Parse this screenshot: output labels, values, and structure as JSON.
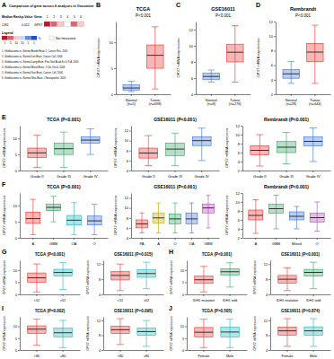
{
  "chart_data": [
    {
      "type": "heatmap",
      "label": "A",
      "title": "Comparison of gene across 6 analyses in Oncomine",
      "row_headers": [
        "Median Rank",
        "p-Value",
        "Gene"
      ],
      "columns": [
        1,
        2,
        3,
        4,
        5,
        6
      ],
      "gene": "GPX7",
      "median_rank": 1361,
      "p_value": 0.012,
      "cells": [
        1,
        5,
        10,
        null,
        5,
        10
      ],
      "legend_title": "Legend",
      "cbar_ticks": [
        {
          "value": 1,
          "label": "1"
        },
        {
          "value": 5,
          "label": "5"
        },
        {
          "value": 10,
          "label": "10"
        },
        {
          "value": -10,
          "label": "10"
        },
        {
          "value": -5,
          "label": "5"
        },
        {
          "value": -1,
          "label": "1"
        }
      ],
      "cbar_unit": "%",
      "not_measured": "Not measured",
      "analyses": [
        "1. Glioblastoma vs. Normal Bredel Brain 2, Cancer Res, 2005",
        "2. Glioblastoma vs. Normal Lee Brain, Cancer Cell, 2006",
        "3. Glioblastoma vs. Normal Liang Brain, Proc Natl Acad Sci U S A, 2005",
        "4. Glioblastoma vs. Normal Murat Brain, J Clin Oncol, 2008",
        "5. Glioblastoma vs. Normal Sun Brain, Cancer Cell, 2006",
        "6. Glioblastoma vs. Normal Shai Brain, J Neuropathol, 2003"
      ]
    },
    {
      "type": "box",
      "label": "B",
      "title": "TCGA",
      "subtitle": "P<0.001",
      "ylabel": "GPX7 mRNA expression",
      "categories": [
        "Normal\n(n=5)",
        "Tumor\n(n=698)"
      ],
      "colors": [
        "#3b6fd6",
        "#e8312f"
      ],
      "ylim": [
        0,
        14
      ],
      "yticks": [
        0,
        5,
        10
      ],
      "boxes": [
        {
          "min": 0.5,
          "q1": 0.8,
          "median": 1.2,
          "q3": 1.8,
          "max": 2.5
        },
        {
          "min": 1,
          "q1": 5,
          "median": 7.5,
          "q3": 9.5,
          "max": 13
        }
      ]
    },
    {
      "type": "box",
      "label": "C",
      "title": "GSE16011",
      "subtitle": "P<0.001",
      "ylabel": "GPX7 mRNA expression",
      "categories": [
        "Normal\n(n=8)",
        "Tumor\n(n=276)"
      ],
      "colors": [
        "#3b6fd6",
        "#e8312f"
      ],
      "ylim": [
        4,
        13
      ],
      "yticks": [
        4,
        6,
        8,
        10,
        12
      ],
      "boxes": [
        {
          "min": 5.5,
          "q1": 5.8,
          "median": 6.2,
          "q3": 6.6,
          "max": 7
        },
        {
          "min": 5.5,
          "q1": 8,
          "median": 9.2,
          "q3": 10.2,
          "max": 12.5
        }
      ]
    },
    {
      "type": "box",
      "label": "D",
      "title": "Rembrandt",
      "subtitle": "P<0.001",
      "ylabel": "GPX7 mRNA expression",
      "categories": [
        "Normal\n(n=28)",
        "Tumor\n(n=444)"
      ],
      "colors": [
        "#3b6fd6",
        "#e8312f"
      ],
      "ylim": [
        2,
        12
      ],
      "yticks": [
        2,
        4,
        6,
        8,
        10,
        12
      ],
      "boxes": [
        {
          "min": 3.5,
          "q1": 4.2,
          "median": 4.8,
          "q3": 5.4,
          "max": 6.5
        },
        {
          "min": 3.5,
          "q1": 6.5,
          "median": 7.8,
          "q3": 9,
          "max": 11.5
        }
      ]
    },
    {
      "type": "box",
      "label": "E",
      "title": "TCGA (P<0.001)",
      "ylabel": "GPX7 mRNA expression",
      "categories": [
        "Grade II",
        "Grade III",
        "Grade IV"
      ],
      "colors": [
        "#e8312f",
        "#2ca25f",
        "#3b6fd6"
      ],
      "ylim": [
        0,
        14
      ],
      "yticks": [
        0,
        5,
        10
      ],
      "boxes": [
        {
          "min": 1,
          "q1": 4,
          "median": 5.5,
          "q3": 7,
          "max": 11
        },
        {
          "min": 1,
          "q1": 5,
          "median": 6.8,
          "q3": 8.5,
          "max": 12
        },
        {
          "min": 5,
          "q1": 8.5,
          "median": 9.5,
          "q3": 10.5,
          "max": 13
        }
      ]
    },
    {
      "type": "box",
      "title": "GSE16011 (P<0.001)",
      "ylabel": "GPX7 mRNA expression",
      "categories": [
        "Grade II",
        "Grade III",
        "Grade IV"
      ],
      "colors": [
        "#e8312f",
        "#2ca25f",
        "#3b6fd6"
      ],
      "ylim": [
        4,
        13
      ],
      "yticks": [
        4,
        6,
        8,
        10,
        12
      ],
      "boxes": [
        {
          "min": 5,
          "q1": 6.5,
          "median": 7.5,
          "q3": 8.5,
          "max": 11
        },
        {
          "min": 5,
          "q1": 7,
          "median": 8.3,
          "q3": 9.5,
          "max": 11.5
        },
        {
          "min": 6,
          "q1": 9,
          "median": 10,
          "q3": 10.8,
          "max": 12.5
        }
      ]
    },
    {
      "type": "box",
      "title": "Rembrandt (P<0.001)",
      "ylabel": "GPX7 mRNA expression",
      "categories": [
        "Grade II",
        "Grade III",
        "Grade IV"
      ],
      "colors": [
        "#e8312f",
        "#2ca25f",
        "#3b6fd6"
      ],
      "ylim": [
        2,
        12
      ],
      "yticks": [
        2,
        4,
        6,
        8,
        10,
        12
      ],
      "boxes": [
        {
          "min": 3,
          "q1": 5.5,
          "median": 6.5,
          "q3": 7.5,
          "max": 10
        },
        {
          "min": 3.5,
          "q1": 6,
          "median": 7.2,
          "q3": 8.5,
          "max": 10.5
        },
        {
          "min": 4,
          "q1": 7.5,
          "median": 8.5,
          "q3": 9.5,
          "max": 11.5
        }
      ]
    },
    {
      "type": "box",
      "label": "F",
      "title": "TCGA (P<0.001)",
      "ylabel": "GPX7 mRNA expression",
      "categories": [
        "A",
        "GBM",
        "OA",
        "O"
      ],
      "colors": [
        "#e8312f",
        "#2ca25f",
        "#1fb5b5",
        "#3b6fd6"
      ],
      "ylim": [
        0,
        14
      ],
      "yticks": [
        0,
        5,
        10
      ],
      "boxes": [
        {
          "min": 1,
          "q1": 4.5,
          "median": 6,
          "q3": 8,
          "max": 12
        },
        {
          "min": 5,
          "q1": 8.5,
          "median": 9.5,
          "q3": 10.5,
          "max": 13
        },
        {
          "min": 1,
          "q1": 4,
          "median": 5.5,
          "q3": 7,
          "max": 11
        },
        {
          "min": 1,
          "q1": 4,
          "median": 5.3,
          "q3": 6.8,
          "max": 10.5
        }
      ]
    },
    {
      "type": "box",
      "title": "GSE16011 (P<0.001)",
      "ylabel": "GPX7 mRNA expression",
      "categories": [
        "PA",
        "A",
        "O",
        "OA",
        "GBM"
      ],
      "colors": [
        "#e8312f",
        "#b8a800",
        "#2ca25f",
        "#3b6fd6",
        "#c03bc4"
      ],
      "ylim": [
        4,
        13
      ],
      "yticks": [
        4,
        6,
        8,
        10,
        12
      ],
      "boxes": [
        {
          "min": 5,
          "q1": 6,
          "median": 6.8,
          "q3": 7.6,
          "max": 9
        },
        {
          "min": 5,
          "q1": 7,
          "median": 8,
          "q3": 9,
          "max": 11
        },
        {
          "min": 5,
          "q1": 6.8,
          "median": 7.8,
          "q3": 8.8,
          "max": 11
        },
        {
          "min": 5,
          "q1": 6.8,
          "median": 7.8,
          "q3": 9,
          "max": 11
        },
        {
          "min": 6,
          "q1": 9,
          "median": 10,
          "q3": 10.8,
          "max": 12.5
        }
      ]
    },
    {
      "type": "box",
      "title": "Rembrandt (P<0.001)",
      "ylabel": "GPX7 mRNA expression",
      "categories": [
        "A",
        "GBM",
        "Mixed",
        "O"
      ],
      "colors": [
        "#e8312f",
        "#2ca25f",
        "#3b6fd6",
        "#c03bc4"
      ],
      "ylim": [
        2,
        12
      ],
      "yticks": [
        2,
        4,
        6,
        8,
        10,
        12
      ],
      "boxes": [
        {
          "min": 3,
          "q1": 6,
          "median": 7,
          "q3": 8.2,
          "max": 10.5
        },
        {
          "min": 4,
          "q1": 7.5,
          "median": 8.5,
          "q3": 9.5,
          "max": 11.5
        },
        {
          "min": 4,
          "q1": 6,
          "median": 6.8,
          "q3": 7.8,
          "max": 9
        },
        {
          "min": 3.5,
          "q1": 5.5,
          "median": 6.5,
          "q3": 7.5,
          "max": 10
        }
      ]
    },
    {
      "type": "box",
      "label": "G",
      "title": "TCGA (P<0.001)",
      "ylabel": "GPX7 mRNA expression",
      "categories": [
        "<52",
        "≥52"
      ],
      "colors": [
        "#e8312f",
        "#1fb5b5"
      ],
      "ylim": [
        0,
        14
      ],
      "yticks": [
        0,
        5,
        10
      ],
      "boxes": [
        {
          "min": 1,
          "q1": 5,
          "median": 6.8,
          "q3": 8.8,
          "max": 12.5
        },
        {
          "min": 2,
          "q1": 7.5,
          "median": 9,
          "q3": 10.3,
          "max": 13
        }
      ]
    },
    {
      "type": "box",
      "title": "GSE16011 (P=0.015)",
      "ylabel": "GPX7 mRNA expression",
      "categories": [
        "<52",
        "≥52"
      ],
      "colors": [
        "#e8312f",
        "#1fb5b5"
      ],
      "ylim": [
        4,
        13
      ],
      "yticks": [
        4,
        8,
        12
      ],
      "boxes": [
        {
          "min": 5,
          "q1": 7.8,
          "median": 9,
          "q3": 10,
          "max": 12
        },
        {
          "min": 5.5,
          "q1": 8.5,
          "median": 9.5,
          "q3": 10.5,
          "max": 12.5
        }
      ]
    },
    {
      "type": "box",
      "label": "H",
      "title": "TCGA (P<0.001)",
      "ylabel": "GPX7 mRNA expression",
      "categories": [
        "IDH1 mutation",
        "IDH1 wild"
      ],
      "colors": [
        "#e8312f",
        "#2ca25f"
      ],
      "ylim": [
        0,
        14
      ],
      "yticks": [
        0,
        5,
        10
      ],
      "boxes": [
        {
          "min": 1,
          "q1": 4.5,
          "median": 6,
          "q3": 7.5,
          "max": 11.5
        },
        {
          "min": 3,
          "q1": 8,
          "median": 9.3,
          "q3": 10.5,
          "max": 13
        }
      ]
    },
    {
      "type": "box",
      "title": "GSE16011 (P<0.001)",
      "ylabel": "GPX7 mRNA expression",
      "categories": [
        "IDH1 mutation",
        "IDH1 wild"
      ],
      "colors": [
        "#e8312f",
        "#2ca25f"
      ],
      "ylim": [
        4,
        13
      ],
      "yticks": [
        4,
        8,
        12
      ],
      "boxes": [
        {
          "min": 5,
          "q1": 7,
          "median": 8,
          "q3": 9,
          "max": 11
        },
        {
          "min": 5.5,
          "q1": 8.8,
          "median": 9.8,
          "q3": 10.6,
          "max": 12.5
        }
      ]
    },
    {
      "type": "box",
      "label": "I",
      "title": "TCGA (P=0.002)",
      "ylabel": "GPX7 mRNA expression",
      "categories": [
        "<80",
        "≥80"
      ],
      "colors": [
        "#e8312f",
        "#1fb5b5"
      ],
      "ylim": [
        0,
        14
      ],
      "yticks": [
        0,
        5,
        10
      ],
      "boxes": [
        {
          "min": 2,
          "q1": 7,
          "median": 8.8,
          "q3": 10.2,
          "max": 13
        },
        {
          "min": 1,
          "q1": 5.5,
          "median": 7.3,
          "q3": 9.2,
          "max": 12.5
        }
      ]
    },
    {
      "type": "box",
      "title": "GSE16011 (P=0.095)",
      "ylabel": "GPX7 mRNA expression",
      "categories": [
        "<80",
        "≥80"
      ],
      "colors": [
        "#e8312f",
        "#1fb5b5"
      ],
      "ylim": [
        4,
        13
      ],
      "yticks": [
        4,
        8,
        12
      ],
      "boxes": [
        {
          "min": 5.5,
          "q1": 8.5,
          "median": 9.5,
          "q3": 10.5,
          "max": 12.5
        },
        {
          "min": 5,
          "q1": 8,
          "median": 9,
          "q3": 10,
          "max": 12
        }
      ]
    },
    {
      "type": "box",
      "label": "J",
      "title": "TCGA (P=0.505)",
      "ylabel": "GPX7 mRNA expression",
      "categories": [
        "Female",
        "Male"
      ],
      "colors": [
        "#e8312f",
        "#1fb5b5"
      ],
      "ylim": [
        0,
        14
      ],
      "yticks": [
        0,
        5,
        10
      ],
      "boxes": [
        {
          "min": 1,
          "q1": 5.5,
          "median": 7.5,
          "q3": 9.5,
          "max": 13
        },
        {
          "min": 1,
          "q1": 5.5,
          "median": 7.6,
          "q3": 9.6,
          "max": 13
        }
      ]
    },
    {
      "type": "box",
      "title": "GSE16011 (P=0.874)",
      "ylabel": "GPX7 mRNA expression",
      "categories": [
        "Female",
        "Male"
      ],
      "colors": [
        "#e8312f",
        "#1fb5b5"
      ],
      "ylim": [
        4,
        13
      ],
      "yticks": [
        4,
        8,
        12
      ],
      "boxes": [
        {
          "min": 5,
          "q1": 8,
          "median": 9.2,
          "q3": 10.2,
          "max": 12.5
        },
        {
          "min": 5,
          "q1": 8,
          "median": 9.2,
          "q3": 10.3,
          "max": 12.5
        }
      ]
    }
  ]
}
